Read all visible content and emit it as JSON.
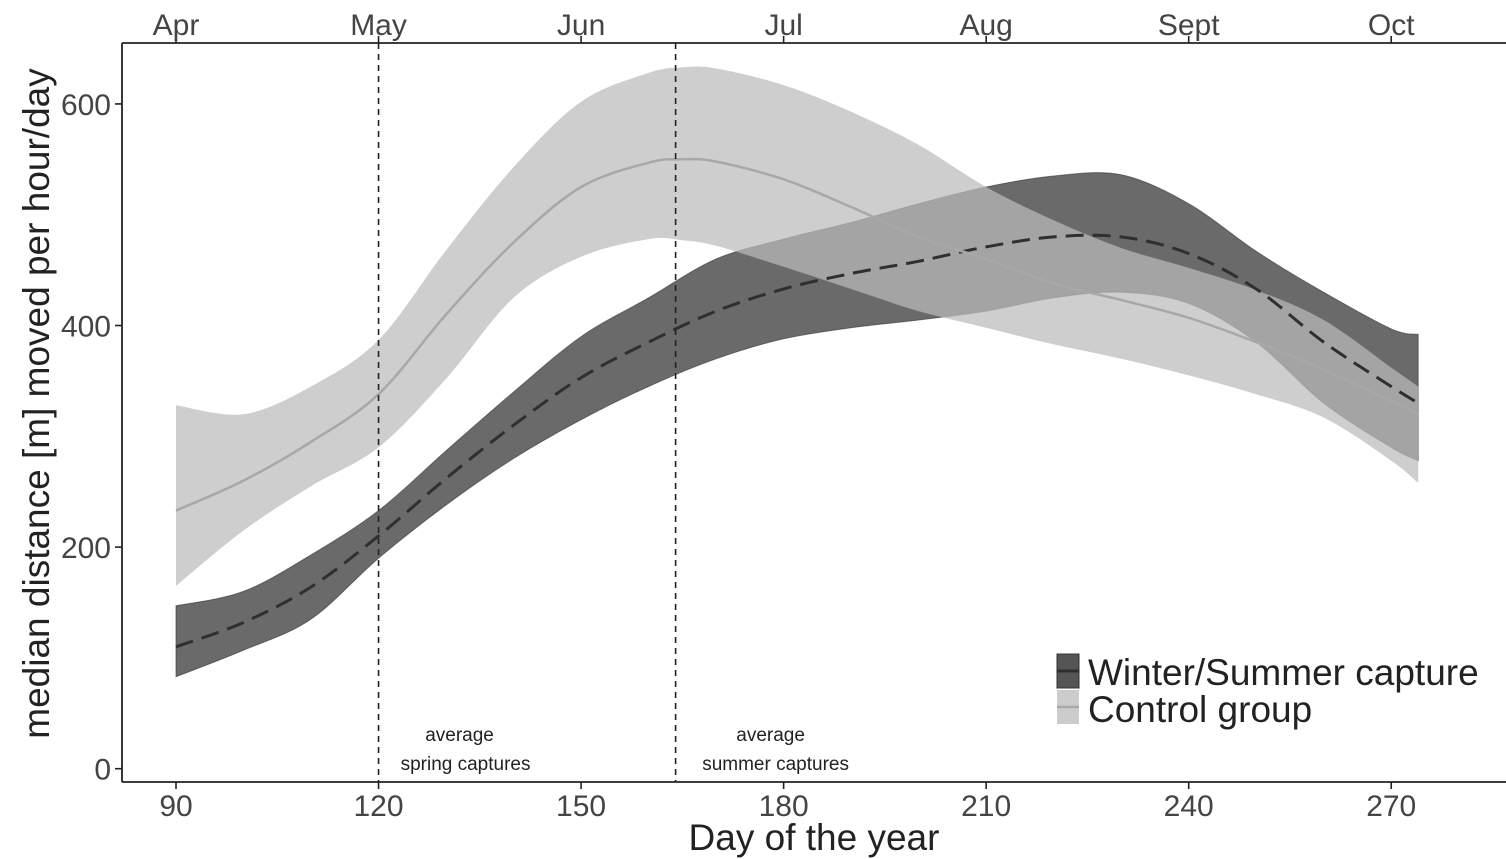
{
  "chart_data": {
    "type": "area",
    "xlabel": "Day of the year",
    "ylabel": "median distance [m] moved per hour/day",
    "xlim": [
      82,
      287
    ],
    "ylim": [
      -12,
      655
    ],
    "x_ticks": [
      90,
      120,
      150,
      180,
      210,
      240,
      270
    ],
    "y_ticks": [
      0,
      200,
      400,
      600
    ],
    "top_axis": {
      "labels": [
        "Apr",
        "May",
        "Jun",
        "Jul",
        "Aug",
        "Sept",
        "Oct"
      ],
      "positions": [
        90,
        120,
        150,
        180,
        210,
        240,
        270
      ]
    },
    "grid": false,
    "legend_position": "bottom-right",
    "series": [
      {
        "name": "Winter/Summer capture",
        "line_style": "dashed",
        "fill_color": "#555555",
        "line_color": "#2f2f2f",
        "x": [
          90,
          100,
          110,
          120,
          130,
          140,
          150,
          160,
          170,
          180,
          190,
          200,
          210,
          220,
          230,
          240,
          250,
          260,
          270,
          274
        ],
        "values": [
          110,
          132,
          164,
          210,
          262,
          310,
          353,
          385,
          413,
          433,
          447,
          458,
          471,
          480,
          480,
          465,
          433,
          385,
          345,
          330
        ],
        "lower": [
          83,
          107,
          135,
          190,
          238,
          280,
          315,
          345,
          370,
          388,
          398,
          405,
          413,
          425,
          430,
          420,
          385,
          330,
          290,
          278
        ],
        "upper": [
          147,
          160,
          193,
          233,
          287,
          340,
          390,
          425,
          460,
          478,
          493,
          510,
          525,
          535,
          536,
          510,
          467,
          430,
          397,
          392
        ]
      },
      {
        "name": "Control group",
        "line_style": "solid",
        "fill_color": "#bbbbbb",
        "line_color": "#a8a8a8",
        "x": [
          90,
          100,
          110,
          120,
          130,
          140,
          150,
          160,
          165,
          170,
          180,
          190,
          200,
          210,
          220,
          230,
          240,
          250,
          260,
          270,
          274
        ],
        "values": [
          233,
          260,
          295,
          338,
          410,
          475,
          525,
          547,
          550,
          548,
          532,
          507,
          480,
          460,
          438,
          423,
          407,
          385,
          360,
          332,
          320
        ],
        "lower": [
          165,
          215,
          255,
          290,
          352,
          425,
          462,
          478,
          477,
          472,
          453,
          433,
          413,
          398,
          383,
          370,
          355,
          338,
          317,
          278,
          258
        ],
        "upper": [
          328,
          320,
          345,
          387,
          468,
          543,
          602,
          628,
          633,
          632,
          617,
          593,
          563,
          525,
          495,
          470,
          452,
          432,
          405,
          362,
          345
        ]
      }
    ],
    "reference_lines": [
      {
        "x": 120,
        "label_line1": "average",
        "label_line2": "spring captures"
      },
      {
        "x": 164,
        "label_line1": "average",
        "label_line2": "summer captures"
      }
    ]
  }
}
